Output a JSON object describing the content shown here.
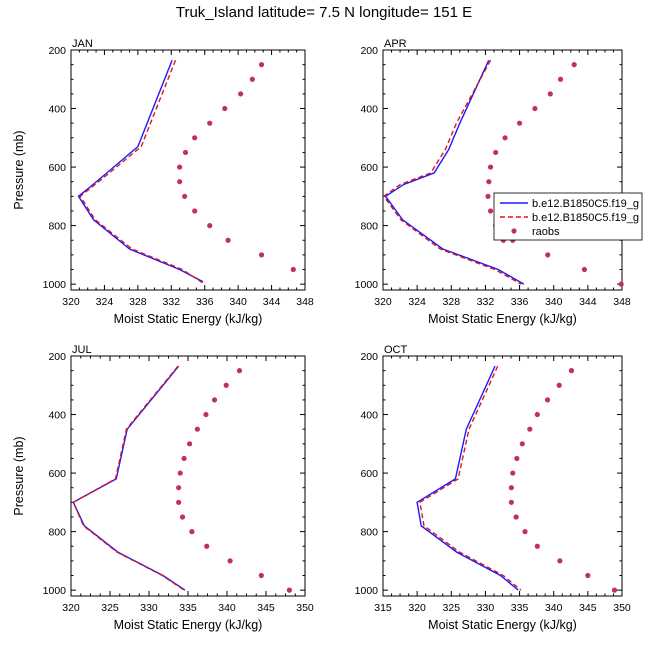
{
  "title": "Truk_Island  latitude= 7.5 N longitude= 151 E",
  "legend": {
    "entries": [
      {
        "label": "b.e12.B1850C5.f19_g",
        "style": "solid",
        "color": "#1a1aff"
      },
      {
        "label": "b.e12.B1850C5.f19_g",
        "style": "dashed",
        "color": "#e0141e"
      },
      {
        "label": "raobs",
        "style": "marker",
        "color": "#c03060"
      }
    ]
  },
  "chart_data": [
    {
      "type": "line",
      "panel": "JAN",
      "xlabel": "Moist Static Energy (kJ/kg)",
      "ylabel": "Pressure (mb)",
      "xlim": [
        320,
        348
      ],
      "ylim": [
        200,
        1020
      ],
      "y_inverted": true,
      "xticks": [
        320,
        324,
        328,
        332,
        336,
        340,
        344,
        348
      ],
      "yticks": [
        200,
        400,
        600,
        800,
        1000
      ],
      "series": [
        {
          "color": "#1a1aff",
          "style": "solid",
          "x": [
            332.1,
            328.0,
            324.3,
            322.2,
            320.9,
            322.7,
            327.0,
            333.0,
            335.8
          ],
          "y": [
            235,
            530,
            620,
            670,
            700,
            780,
            880,
            950,
            992
          ]
        },
        {
          "color": "#e0141e",
          "style": "dashed",
          "x": [
            332.5,
            328.4,
            324.6,
            322.4,
            321.1,
            322.9,
            327.3,
            333.3,
            336.0
          ],
          "y": [
            235,
            530,
            620,
            670,
            700,
            780,
            880,
            950,
            1000
          ]
        },
        {
          "color": "#c03060",
          "style": "marker",
          "x": [
            342.8,
            341.7,
            340.3,
            338.4,
            336.6,
            334.8,
            333.7,
            333.0,
            333.0,
            333.6,
            334.8,
            336.6,
            338.8,
            342.8,
            346.6
          ],
          "y": [
            250,
            300,
            350,
            400,
            450,
            500,
            550,
            600,
            650,
            700,
            750,
            800,
            850,
            900,
            950
          ]
        }
      ]
    },
    {
      "type": "line",
      "panel": "APR",
      "xlabel": "Moist Static Energy (kJ/kg)",
      "ylabel": "",
      "xlim": [
        320,
        348
      ],
      "ylim": [
        200,
        1020
      ],
      "y_inverted": true,
      "xticks": [
        320,
        324,
        328,
        332,
        336,
        340,
        344,
        348
      ],
      "yticks": [
        200,
        400,
        600,
        800,
        1000
      ],
      "series": [
        {
          "color": "#1a1aff",
          "style": "solid",
          "x": [
            332.4,
            329.0,
            327.7,
            326.0,
            322.4,
            320.3,
            322.3,
            327.0,
            333.5,
            336.5
          ],
          "y": [
            235,
            450,
            540,
            620,
            660,
            700,
            780,
            880,
            950,
            1000
          ]
        },
        {
          "color": "#e0141e",
          "style": "dashed",
          "x": [
            332.6,
            328.6,
            327.3,
            325.6,
            322.0,
            320.1,
            322.1,
            326.7,
            333.1,
            336.2
          ],
          "y": [
            235,
            450,
            540,
            620,
            660,
            700,
            780,
            880,
            950,
            1000
          ]
        },
        {
          "color": "#c03060",
          "style": "marker",
          "x": [
            342.4,
            340.8,
            339.6,
            337.8,
            336.0,
            334.3,
            333.2,
            332.6,
            332.4,
            332.3,
            332.6,
            333.2,
            334.1,
            335.2,
            339.3,
            343.6,
            347.9
          ],
          "y": [
            250,
            300,
            350,
            400,
            450,
            500,
            550,
            600,
            650,
            700,
            750,
            800,
            850,
            850,
            900,
            950,
            1000
          ]
        }
      ]
    },
    {
      "type": "line",
      "panel": "JUL",
      "xlabel": "Moist Static Energy (kJ/kg)",
      "ylabel": "Pressure (mb)",
      "xlim": [
        320,
        350
      ],
      "ylim": [
        200,
        1020
      ],
      "y_inverted": true,
      "xticks": [
        320,
        325,
        330,
        335,
        340,
        345,
        350
      ],
      "yticks": [
        200,
        400,
        600,
        800,
        1000
      ],
      "series": [
        {
          "color": "#1a1aff",
          "style": "solid",
          "x": [
            333.8,
            327.2,
            325.8,
            320.3,
            321.7,
            326.0,
            331.8,
            334.6
          ],
          "y": [
            235,
            450,
            620,
            700,
            780,
            870,
            950,
            1000
          ]
        },
        {
          "color": "#e0141e",
          "style": "dashed",
          "x": [
            333.7,
            327.1,
            325.7,
            320.3,
            321.6,
            325.9,
            331.7,
            334.5
          ],
          "y": [
            235,
            450,
            620,
            700,
            780,
            870,
            950,
            1000
          ]
        },
        {
          "color": "#c03060",
          "style": "marker",
          "x": [
            341.6,
            339.9,
            338.4,
            337.3,
            336.2,
            335.2,
            334.5,
            334.0,
            333.8,
            333.8,
            334.3,
            335.5,
            337.4,
            340.4,
            344.4,
            348.0
          ],
          "y": [
            250,
            300,
            350,
            400,
            450,
            500,
            550,
            600,
            650,
            700,
            750,
            800,
            850,
            900,
            950,
            1000
          ]
        }
      ]
    },
    {
      "type": "line",
      "panel": "OCT",
      "xlabel": "Moist Static Energy (kJ/kg)",
      "ylabel": "",
      "xlim": [
        315,
        350
      ],
      "ylim": [
        200,
        1020
      ],
      "y_inverted": true,
      "xticks": [
        315,
        320,
        325,
        330,
        335,
        340,
        345,
        350
      ],
      "yticks": [
        200,
        400,
        600,
        800,
        1000
      ],
      "series": [
        {
          "color": "#1a1aff",
          "style": "solid",
          "x": [
            331.4,
            327.2,
            325.6,
            320.0,
            320.6,
            325.8,
            332.2,
            334.8
          ],
          "y": [
            235,
            450,
            620,
            700,
            780,
            870,
            950,
            1000
          ]
        },
        {
          "color": "#e0141e",
          "style": "dashed",
          "x": [
            331.8,
            327.6,
            326.0,
            320.4,
            321.0,
            326.2,
            332.6,
            335.2
          ],
          "y": [
            235,
            450,
            620,
            700,
            780,
            870,
            950,
            1000
          ]
        },
        {
          "color": "#c03060",
          "style": "marker",
          "x": [
            342.6,
            340.8,
            339.1,
            337.6,
            336.5,
            335.4,
            334.6,
            334.0,
            333.8,
            333.8,
            334.5,
            335.8,
            337.6,
            340.9,
            345.0,
            348.9
          ],
          "y": [
            250,
            300,
            350,
            400,
            450,
            500,
            550,
            600,
            650,
            700,
            750,
            800,
            850,
            900,
            950,
            1000
          ]
        }
      ]
    }
  ]
}
